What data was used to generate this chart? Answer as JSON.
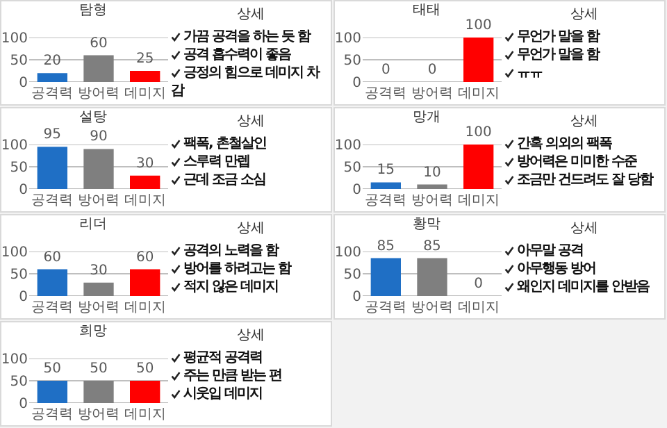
{
  "chart_data": [
    {
      "type": "bar",
      "title": "탐형",
      "categories": [
        "공격력",
        "방어력",
        "데미지"
      ],
      "values": [
        20,
        60,
        25
      ],
      "colors": [
        "#1f6fc5",
        "#7f7f7f",
        "#ff0000"
      ],
      "ylim": [
        0,
        100
      ],
      "yticks": [
        0,
        50,
        100
      ],
      "grid": "y",
      "data_labels": true
    },
    {
      "type": "other",
      "title": "상세",
      "annotations": [
        "가끔 공격을 하는 듯 함",
        "공격 흡수력이 좋음",
        "긍정의 힘으로 데미지 차감"
      ]
    },
    {
      "type": "bar",
      "title": "태태",
      "categories": [
        "공격력",
        "방어력",
        "데미지"
      ],
      "values": [
        0,
        0,
        100
      ],
      "colors": [
        "#1f6fc5",
        "#7f7f7f",
        "#ff0000"
      ],
      "ylim": [
        0,
        100
      ],
      "yticks": [
        0,
        50,
        100
      ],
      "grid": "y",
      "data_labels": true
    },
    {
      "type": "other",
      "title": "상세",
      "annotations": [
        "무언가 말을 함",
        "무언가 말을 함",
        "ㅠㅠ"
      ]
    },
    {
      "type": "bar",
      "title": "설탕",
      "categories": [
        "공격력",
        "방어력",
        "데미지"
      ],
      "values": [
        95,
        90,
        30
      ],
      "colors": [
        "#1f6fc5",
        "#7f7f7f",
        "#ff0000"
      ],
      "ylim": [
        0,
        100
      ],
      "yticks": [
        0,
        50,
        100
      ],
      "grid": "y",
      "data_labels": true
    },
    {
      "type": "other",
      "title": "상세",
      "annotations": [
        "팩폭, 촌철살인",
        "스루력 만렙",
        "근데 조금 소심"
      ]
    },
    {
      "type": "bar",
      "title": "망개",
      "categories": [
        "공격력",
        "방어력",
        "데미지"
      ],
      "values": [
        15,
        10,
        100
      ],
      "colors": [
        "#1f6fc5",
        "#7f7f7f",
        "#ff0000"
      ],
      "ylim": [
        0,
        100
      ],
      "yticks": [
        0,
        50,
        100
      ],
      "grid": "y",
      "data_labels": true
    },
    {
      "type": "other",
      "title": "상세",
      "annotations": [
        "간혹 의외의 팩폭",
        "방어력은 미미한 수준",
        "조금만 건드려도 잘 당함"
      ]
    },
    {
      "type": "bar",
      "title": "리더",
      "categories": [
        "공격력",
        "방어력",
        "데미지"
      ],
      "values": [
        60,
        30,
        60
      ],
      "colors": [
        "#1f6fc5",
        "#7f7f7f",
        "#ff0000"
      ],
      "ylim": [
        0,
        100
      ],
      "yticks": [
        0,
        50,
        100
      ],
      "grid": "y",
      "data_labels": true
    },
    {
      "type": "other",
      "title": "상세",
      "annotations": [
        "공격의 노력을 함",
        "방어를 하려고는 함",
        "적지 않은 데미지"
      ]
    },
    {
      "type": "bar",
      "title": "황막",
      "categories": [
        "공격력",
        "방어력",
        "데미지"
      ],
      "values": [
        85,
        85,
        0
      ],
      "colors": [
        "#1f6fc5",
        "#7f7f7f",
        "#ff0000"
      ],
      "ylim": [
        0,
        100
      ],
      "yticks": [
        0,
        50,
        100
      ],
      "grid": "y",
      "data_labels": true
    },
    {
      "type": "other",
      "title": "상세",
      "annotations": [
        "아무말 공격",
        "아무행동 방어",
        "왜인지 데미지를 안받음"
      ]
    },
    {
      "type": "bar",
      "title": "희망",
      "categories": [
        "공격력",
        "방어력",
        "데미지"
      ],
      "values": [
        50,
        50,
        50
      ],
      "colors": [
        "#1f6fc5",
        "#7f7f7f",
        "#ff0000"
      ],
      "ylim": [
        0,
        100
      ],
      "yticks": [
        0,
        50,
        100
      ],
      "grid": "y",
      "data_labels": true
    },
    {
      "type": "other",
      "title": "상세",
      "annotations": [
        "평균적 공격력",
        "주는 만큼 받는 편",
        "시웃입 데미지"
      ]
    }
  ]
}
